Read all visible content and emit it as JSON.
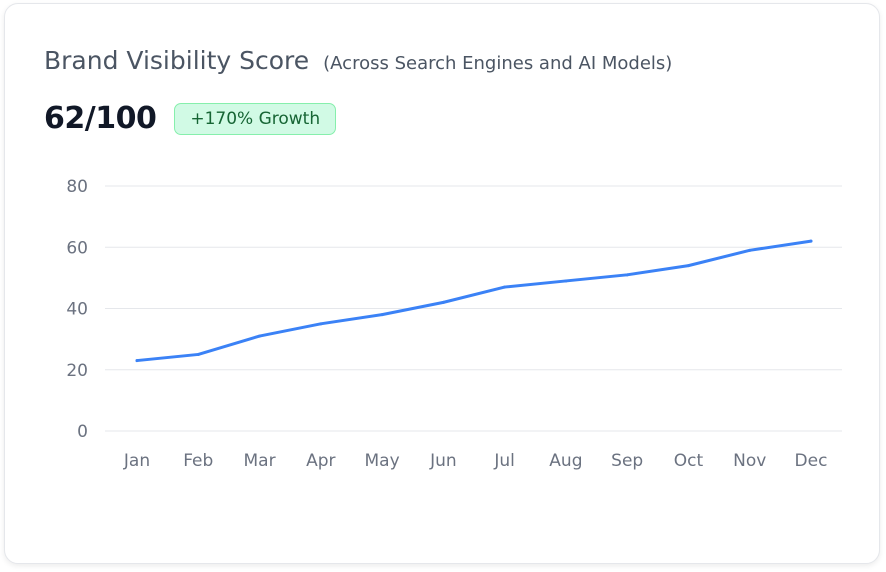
{
  "header": {
    "title": "Brand Visibility Score",
    "subtitle": "(Across Search Engines and AI Models)",
    "score": "62/100",
    "growth_badge": "+170% Growth"
  },
  "colors": {
    "line": "#3b82f6",
    "grid": "#e5e7eb",
    "badge_bg": "#d1fae5",
    "badge_text": "#166534"
  },
  "chart_data": {
    "type": "line",
    "title": "Brand Visibility Score",
    "categories": [
      "Jan",
      "Feb",
      "Mar",
      "Apr",
      "May",
      "Jun",
      "Jul",
      "Aug",
      "Sep",
      "Oct",
      "Nov",
      "Dec"
    ],
    "values": [
      23,
      25,
      31,
      35,
      38,
      42,
      47,
      49,
      51,
      54,
      59,
      62
    ],
    "ylim": [
      0,
      80
    ],
    "yticks": [
      0,
      20,
      40,
      60,
      80
    ],
    "xlabel": "",
    "ylabel": "",
    "grid": true,
    "legend": "none"
  }
}
